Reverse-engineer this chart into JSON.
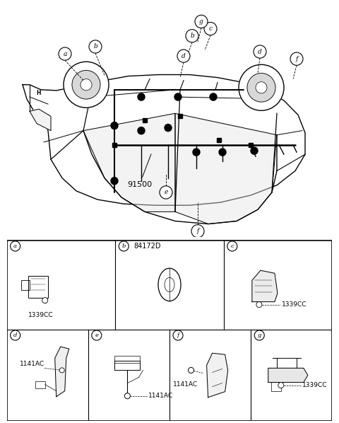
{
  "bg_color": "#ffffff",
  "fig_width": 4.8,
  "fig_height": 5.98,
  "dpi": 100,
  "part_label": "91500",
  "cell_b_top_code": "84172D",
  "cell_codes": {
    "a": "1339CC",
    "c": "1339CC",
    "d": "1141AC",
    "e": "1141AC",
    "f": "1141AC",
    "g": "1339CC"
  },
  "lc": "#000000"
}
